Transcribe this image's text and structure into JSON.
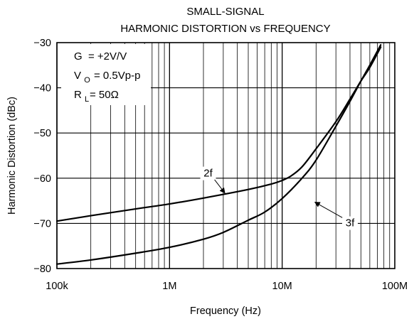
{
  "chart_data": {
    "type": "line",
    "title_lines": [
      "SMALL-SIGNAL",
      "HARMONIC DISTORTION vs FREQUENCY"
    ],
    "xlabel": "Frequency (Hz)",
    "ylabel": "Harmonic Distortion (dBc)",
    "x_scale": "log",
    "xlim": [
      100000,
      100000000
    ],
    "ylim": [
      -80,
      -30
    ],
    "x_ticks": [
      {
        "value": 100000,
        "label": "100k"
      },
      {
        "value": 1000000,
        "label": "1M"
      },
      {
        "value": 10000000,
        "label": "10M"
      },
      {
        "value": 100000000,
        "label": "100M"
      }
    ],
    "y_ticks": [
      {
        "value": -30,
        "label": "−30"
      },
      {
        "value": -40,
        "label": "−40"
      },
      {
        "value": -50,
        "label": "−50"
      },
      {
        "value": -60,
        "label": "−60"
      },
      {
        "value": -70,
        "label": "−70"
      },
      {
        "value": -80,
        "label": "−80"
      }
    ],
    "grid": true,
    "conditions": {
      "gain": {
        "sym": "G",
        "sub": "",
        "value": "= +2V/V"
      },
      "vout": {
        "sym": "V",
        "sub": "O",
        "value": "= 0.5Vp-p"
      },
      "rload": {
        "sym": "R",
        "sub": "L",
        "value": "= 50Ω"
      }
    },
    "series": [
      {
        "name": "2f",
        "x": [
          100000,
          200000,
          500000,
          1000000,
          2000000,
          5000000,
          8000000,
          10000000,
          12000000,
          15000000,
          20000000,
          30000000,
          40000000,
          50000000,
          60000000,
          75000000
        ],
        "y": [
          -69.5,
          -68.3,
          -66.8,
          -65.7,
          -64.4,
          -62.5,
          -61.3,
          -60.5,
          -59.5,
          -57.5,
          -53.5,
          -47.5,
          -42.5,
          -38.5,
          -35.5,
          -31
        ]
      },
      {
        "name": "3f",
        "x": [
          100000,
          200000,
          500000,
          1000000,
          2000000,
          3000000,
          5000000,
          7000000,
          10000000,
          15000000,
          20000000,
          30000000,
          40000000,
          50000000,
          60000000,
          75000000
        ],
        "y": [
          -79,
          -78.1,
          -76.6,
          -75.3,
          -73.5,
          -72,
          -69.3,
          -67.5,
          -64.5,
          -60,
          -56,
          -48.5,
          -43,
          -38.5,
          -35,
          -30.5
        ]
      }
    ],
    "callouts": [
      {
        "series": "2f",
        "label": "2f",
        "label_x": 2200000,
        "label_y": -59.5,
        "arrow_to_x": 3100000,
        "arrow_to_y": -63.3
      },
      {
        "series": "3f",
        "label": "3f",
        "label_x": 40000000,
        "label_y": -70.5,
        "arrow_to_x": 19500000,
        "arrow_to_y": -65.3
      }
    ]
  }
}
